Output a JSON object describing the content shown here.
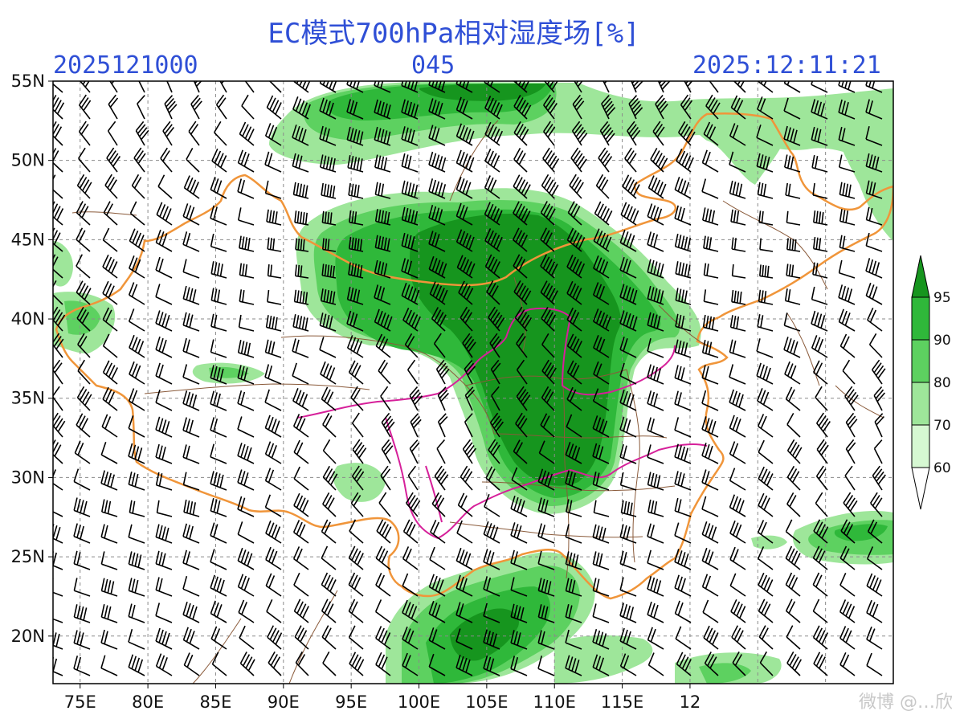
{
  "title": "EC模式700hPa相对湿度场[%]",
  "header": {
    "init_time": "2025121000",
    "forecast_hour": "045",
    "valid_time": "2025:12:11:21"
  },
  "map": {
    "lon_range": [
      73,
      135
    ],
    "lat_range": [
      17,
      55
    ],
    "lon_ticks": [
      "75E",
      "80E",
      "85E",
      "90E",
      "95E",
      "100E",
      "105E",
      "110E",
      "115E",
      "12"
    ],
    "lat_ticks": [
      "55N",
      "50N",
      "45N",
      "40N",
      "35N",
      "30N",
      "25N",
      "20N"
    ],
    "grid": "dashed"
  },
  "colorbar": {
    "levels": [
      "95",
      "90",
      "80",
      "70",
      "60"
    ],
    "colors": [
      "#16951e",
      "#2fb83a",
      "#5dd160",
      "#9ee69a",
      "#d6f8d2",
      "#ffffff"
    ]
  },
  "watermark": "微博 @…欣",
  "colors": {
    "title": "#2f4fd6",
    "border": "#f0953a",
    "province": "#8a5a3a",
    "river": "#d6209a"
  }
}
